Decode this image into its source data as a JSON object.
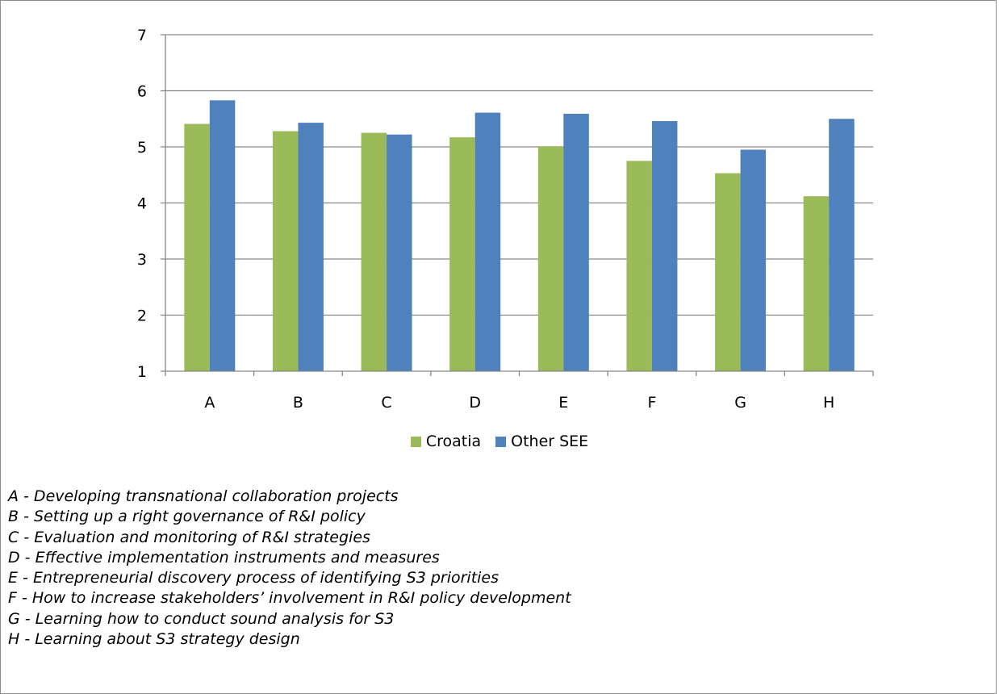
{
  "colors": {
    "croatia": "#9bbb59",
    "other_see": "#4f81bd",
    "grid": "#868686",
    "axis": "#868686"
  },
  "chart_data": {
    "type": "bar",
    "categories": [
      "A",
      "B",
      "C",
      "D",
      "E",
      "F",
      "G",
      "H"
    ],
    "series": [
      {
        "name": "Croatia",
        "values": [
          5.41,
          5.28,
          5.25,
          5.17,
          5.01,
          4.75,
          4.53,
          4.12
        ]
      },
      {
        "name": "Other SEE",
        "values": [
          5.83,
          5.43,
          5.22,
          5.61,
          5.59,
          5.46,
          4.95,
          5.5
        ]
      }
    ],
    "ylim": [
      1,
      7
    ],
    "yticks": [
      "1",
      "2",
      "3",
      "4",
      "5",
      "6",
      "7"
    ],
    "grid": true,
    "legend_position": "bottom"
  },
  "notes": [
    "A - Developing transnational collaboration projects",
    "B - Setting up a right governance of R&I policy",
    "C - Evaluation and monitoring of R&I strategies",
    "D - Effective implementation instruments and measures",
    "E - Entrepreneurial discovery process of identifying S3 priorities",
    "F - How to increase stakeholders’ involvement in R&I policy development",
    "G - Learning how to conduct sound analysis for S3",
    "H - Learning about S3 strategy design"
  ]
}
